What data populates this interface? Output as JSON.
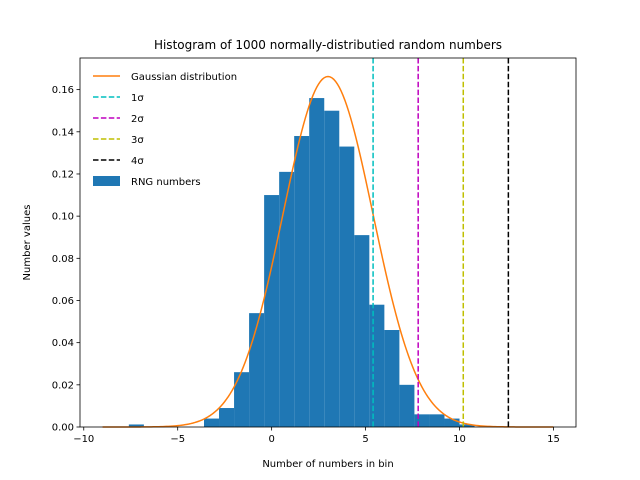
{
  "chart_data": {
    "type": "bar",
    "title": "Histogram of 1000 normally-distributied random numbers",
    "xlabel": "Number of numbers in bin",
    "ylabel": "Number values",
    "xlim": [
      -10.2,
      16.2
    ],
    "ylim": [
      0,
      0.175
    ],
    "xticks": [
      -10,
      -5,
      0,
      5,
      10,
      15
    ],
    "xtick_labels": [
      "−10",
      "−5",
      "0",
      "5",
      "10",
      "15"
    ],
    "yticks": [
      0.0,
      0.02,
      0.04,
      0.06,
      0.08,
      0.1,
      0.12,
      0.14,
      0.16
    ],
    "ytick_labels": [
      "0.00",
      "0.02",
      "0.04",
      "0.06",
      "0.08",
      "0.10",
      "0.12",
      "0.14",
      "0.16"
    ],
    "grid": false,
    "legend_position": "top-left",
    "histogram": {
      "name": "RNG numbers",
      "color": "#1f77b4",
      "bin_edges": [
        -7.6,
        -6.8,
        -6.0,
        -5.2,
        -4.4,
        -3.6,
        -2.8,
        -2.0,
        -1.2,
        -0.4,
        0.4,
        1.2,
        2.0,
        2.8,
        3.6,
        4.4,
        5.2,
        6.0,
        6.8,
        7.6,
        8.4,
        9.2,
        10.0,
        10.8
      ],
      "values": [
        0.0012,
        0.0,
        0.0,
        0.0,
        0.0,
        0.004,
        0.009,
        0.026,
        0.054,
        0.11,
        0.121,
        0.138,
        0.156,
        0.15,
        0.133,
        0.091,
        0.058,
        0.046,
        0.02,
        0.006,
        0.006,
        0.004,
        0.0012
      ]
    },
    "gaussian": {
      "name": "Gaussian distribution",
      "color": "#ff7f0e",
      "mean": 3.0,
      "sigma": 2.4,
      "x_range": [
        -9,
        15
      ]
    },
    "vlines": [
      {
        "name": "1σ",
        "x": 5.4,
        "color": "#00bfbf"
      },
      {
        "name": "2σ",
        "x": 7.8,
        "color": "#bf00bf"
      },
      {
        "name": "3σ",
        "x": 10.2,
        "color": "#bfbf00"
      },
      {
        "name": "4σ",
        "x": 12.6,
        "color": "#000000"
      }
    ]
  }
}
